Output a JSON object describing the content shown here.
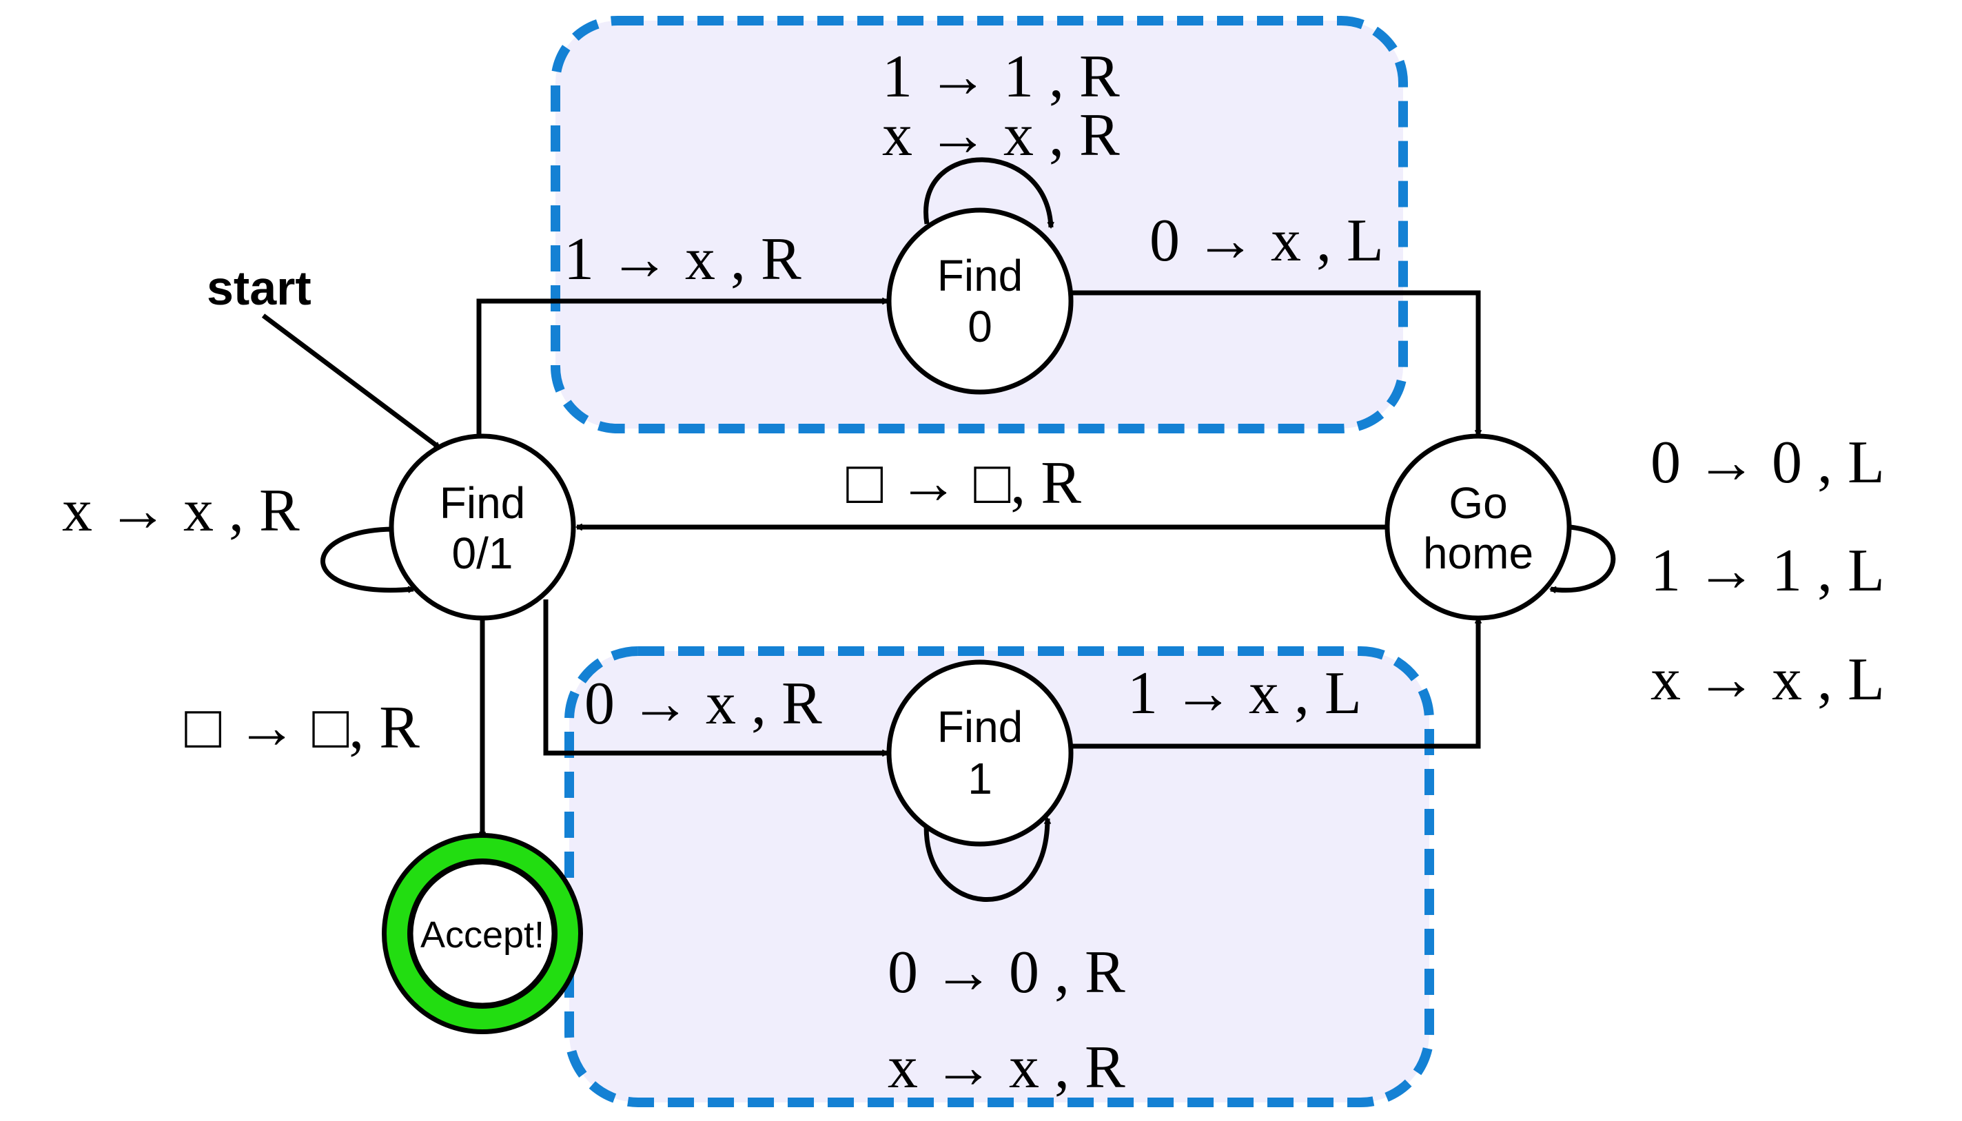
{
  "colors": {
    "region_fill": "#f0eefc",
    "region_border": "#1481d4",
    "accept_ring": "#22dd11",
    "stroke": "#000000"
  },
  "start_label": "start",
  "states": {
    "find01": {
      "line1": "Find",
      "line2": "0/1"
    },
    "find0": {
      "line1": "Find",
      "line2": "0"
    },
    "find1": {
      "line1": "Find",
      "line2": "1"
    },
    "gohome": {
      "line1": "Go",
      "line2": "home"
    },
    "accept": {
      "label": "Accept!"
    }
  },
  "transitions": {
    "find01_self": "x → x , R",
    "find01_to_find0": "1 → x , R",
    "find01_to_find1": "0 → x , R",
    "find01_to_accept": "□ → □, R",
    "gohome_to_find01": "□ → □, R",
    "find0_self_1": "1 → 1 , R",
    "find0_self_2": "x → x , R",
    "find0_to_gohome": "0 → x , L",
    "find1_self_1": "0 → 0 , R",
    "find1_self_2": "x → x , R",
    "find1_to_gohome": "1 → x , L",
    "gohome_self_1": "0 → 0 , L",
    "gohome_self_2": "1 → 1 , L",
    "gohome_self_3": "x → x , L"
  }
}
